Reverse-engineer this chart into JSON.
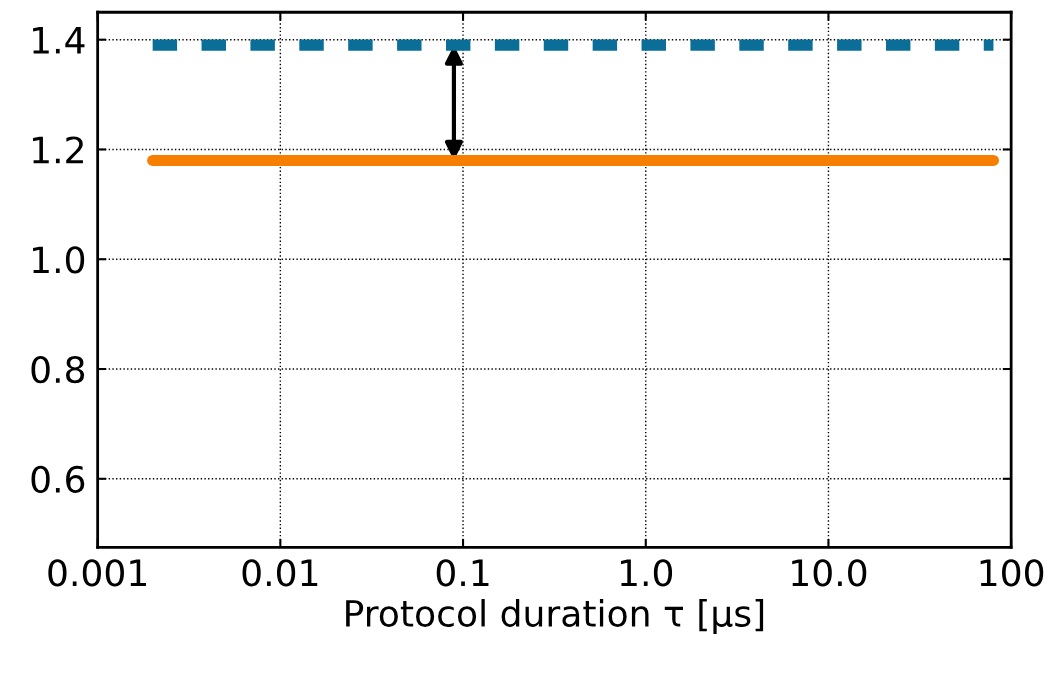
{
  "chart_data": {
    "type": "line",
    "xlabel": "Protocol duration τ [μs]",
    "x": [
      0.002,
      80
    ],
    "series": [
      {
        "color": "#0b6e99",
        "values": [
          1.39,
          1.39
        ],
        "line_style": "dashed"
      },
      {
        "color": "#f77f00",
        "values": [
          1.18,
          1.18
        ],
        "line_style": "solid"
      }
    ],
    "log": "x",
    "xlim": [
      0.001,
      100
    ],
    "xticks": [
      {
        "value": 0.001,
        "label": "0.001"
      },
      {
        "value": 0.01,
        "label": "0.01"
      },
      {
        "value": 0.1,
        "label": "0.1"
      },
      {
        "value": 1,
        "label": "1.0"
      },
      {
        "value": 10,
        "label": "10.0"
      },
      {
        "value": 100,
        "label": "100"
      }
    ],
    "ylim": [
      0.475,
      1.45
    ],
    "yticks": [
      {
        "value": 0.6,
        "label": "0.6"
      },
      {
        "value": 0.8,
        "label": "0.8"
      },
      {
        "value": 1.0,
        "label": "1.0"
      },
      {
        "value": 1.2,
        "label": "1.2"
      },
      {
        "value": 1.4,
        "label": "1.4"
      }
    ],
    "grid": true,
    "marker": "none"
  }
}
